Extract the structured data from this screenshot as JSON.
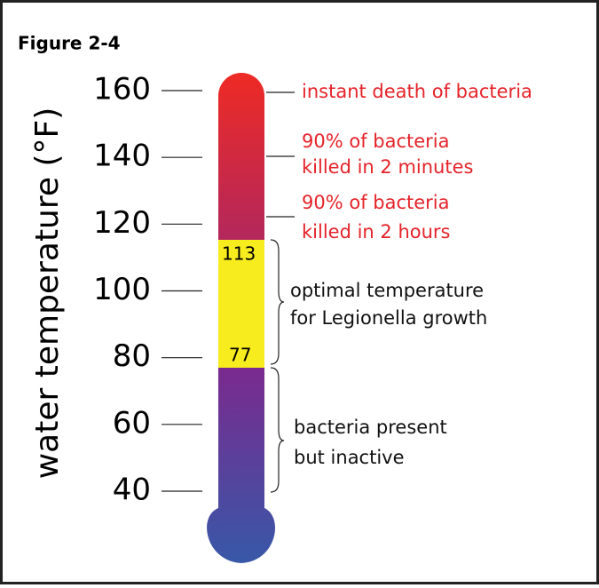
{
  "title": "Figure 2-4",
  "axis_label": "water temperature (°F)",
  "ticks": [
    160,
    140,
    120,
    100,
    80,
    60,
    40
  ],
  "markers": [
    113,
    77
  ],
  "annotations": [
    {
      "lines": [
        "instant death of bacteria"
      ]
    },
    {
      "lines": [
        "90% of bacteria",
        "killed in 2 minutes"
      ]
    },
    {
      "lines": [
        "90% of bacteria",
        "killed in 2 hours"
      ]
    },
    {
      "lines": [
        "optimal temperature",
        "for Legionella growth"
      ]
    },
    {
      "lines": [
        "bacteria present",
        "but inactive"
      ]
    }
  ]
}
